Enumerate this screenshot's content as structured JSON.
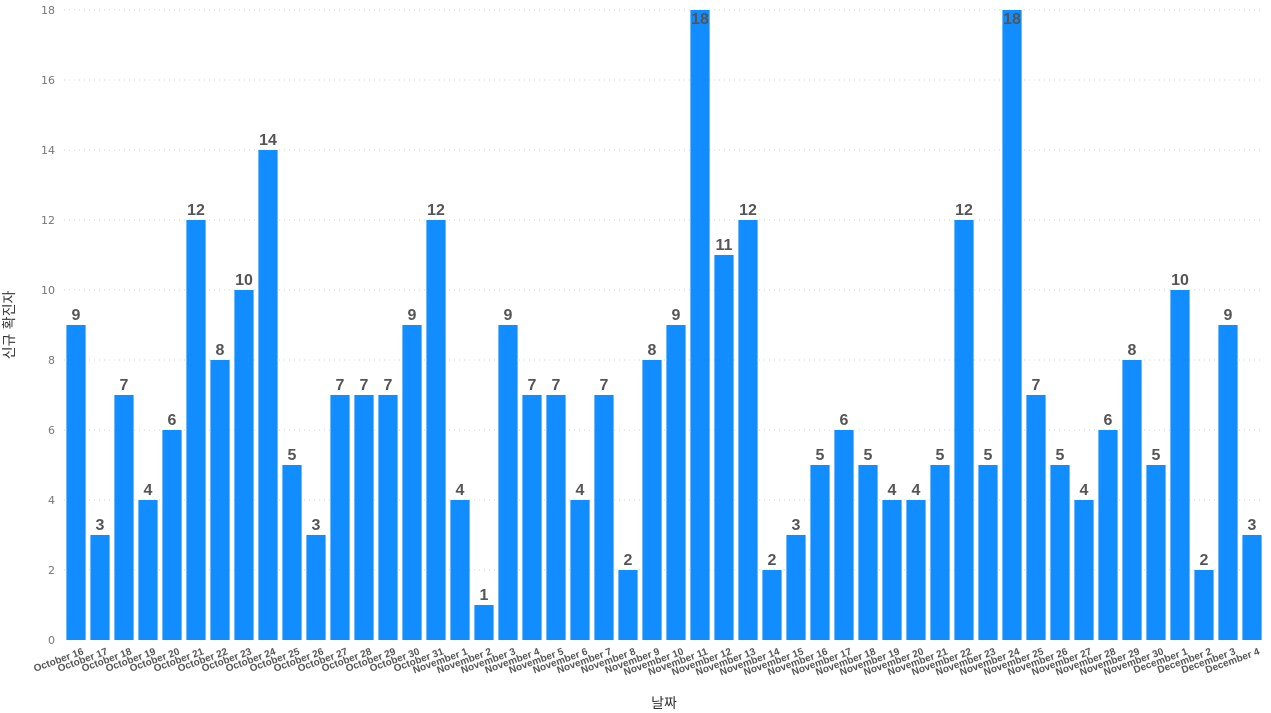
{
  "chart_data": {
    "type": "bar",
    "title": "",
    "xlabel": "날짜",
    "ylabel": "신규 확진자",
    "ylim": [
      0,
      18
    ],
    "yticks": [
      0,
      2,
      4,
      6,
      8,
      10,
      12,
      14,
      16,
      18
    ],
    "grid": true,
    "bar_color": "#118DFF",
    "categories": [
      "October 16",
      "October 17",
      "October 18",
      "October 19",
      "October 20",
      "October 21",
      "October 22",
      "October 23",
      "October 24",
      "October 25",
      "October 26",
      "October 27",
      "October 28",
      "October 29",
      "October 30",
      "October 31",
      "November 1",
      "November 2",
      "November 3",
      "November 4",
      "November 5",
      "November 6",
      "November 7",
      "November 8",
      "November 9",
      "November 10",
      "November 11",
      "November 12",
      "November 13",
      "November 14",
      "November 15",
      "November 16",
      "November 17",
      "November 18",
      "November 19",
      "November 20",
      "November 21",
      "November 22",
      "November 23",
      "November 24",
      "November 25",
      "November 26",
      "November 27",
      "November 28",
      "November 29",
      "November 30",
      "December 1",
      "December 2",
      "December 3",
      "December 4"
    ],
    "values": [
      9,
      3,
      7,
      4,
      6,
      12,
      8,
      10,
      14,
      5,
      3,
      7,
      7,
      7,
      9,
      12,
      4,
      1,
      9,
      7,
      7,
      4,
      7,
      2,
      8,
      9,
      18,
      11,
      12,
      2,
      3,
      5,
      6,
      5,
      4,
      4,
      5,
      12,
      5,
      18,
      7,
      5,
      4,
      6,
      8,
      5,
      10,
      2,
      9,
      3
    ]
  }
}
